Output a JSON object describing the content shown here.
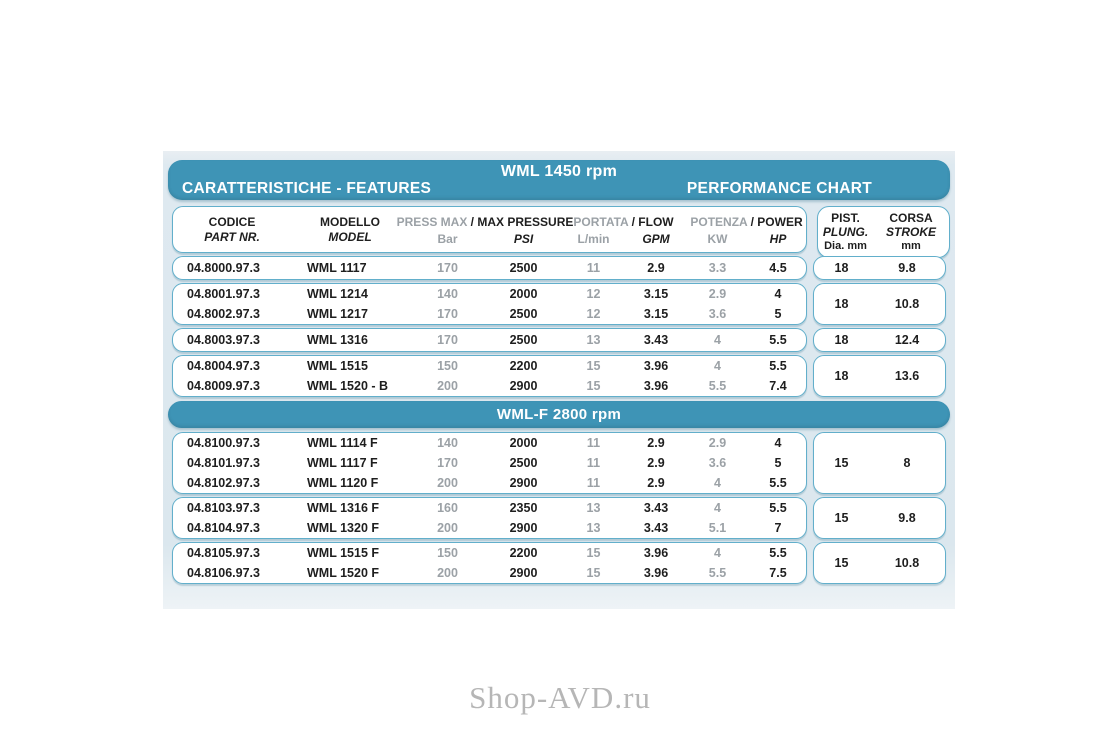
{
  "header": {
    "rpm_title": "WML 1450 rpm",
    "features_title": "CARATTERISTICHE - FEATURES",
    "performance_title": "PERFORMANCE CHART"
  },
  "columns": {
    "codice_l1": "CODICE",
    "codice_l2": "PART NR.",
    "modello_l1": "MODELLO",
    "modello_l2": "MODEL",
    "press_label_gray": "PRESS MAX",
    "press_label_black": "/ MAX PRESSURE",
    "unit_bar": "Bar",
    "unit_psi": "PSI",
    "flow_label_gray": "PORTATA",
    "flow_label_black": "/ FLOW",
    "unit_lmin": "L/min",
    "unit_gpm": "GPM",
    "power_label_gray": "POTENZA",
    "power_label_black": "/ POWER",
    "unit_kw": "KW",
    "unit_hp": "HP",
    "pist_l1": "PIST.",
    "pist_l2": "PLUNG.",
    "pist_l3": "Dia. mm",
    "corsa_l1": "CORSA",
    "corsa_l2": "STROKE",
    "corsa_l3": "mm"
  },
  "section2": {
    "title": "WML-F 2800 rpm"
  },
  "table_1450": {
    "groups": [
      {
        "plunger": "18",
        "stroke": "9.8",
        "rows": [
          [
            "04.8000.97.3",
            "WML 1117",
            "170",
            "2500",
            "11",
            "2.9",
            "3.3",
            "4.5"
          ]
        ]
      },
      {
        "plunger": "18",
        "stroke": "10.8",
        "rows": [
          [
            "04.8001.97.3",
            "WML 1214",
            "140",
            "2000",
            "12",
            "3.15",
            "2.9",
            "4"
          ],
          [
            "04.8002.97.3",
            "WML 1217",
            "170",
            "2500",
            "12",
            "3.15",
            "3.6",
            "5"
          ]
        ]
      },
      {
        "plunger": "18",
        "stroke": "12.4",
        "rows": [
          [
            "04.8003.97.3",
            "WML 1316",
            "170",
            "2500",
            "13",
            "3.43",
            "4",
            "5.5"
          ]
        ]
      },
      {
        "plunger": "18",
        "stroke": "13.6",
        "rows": [
          [
            "04.8004.97.3",
            "WML 1515",
            "150",
            "2200",
            "15",
            "3.96",
            "4",
            "5.5"
          ],
          [
            "04.8009.97.3",
            "WML 1520 - B",
            "200",
            "2900",
            "15",
            "3.96",
            "5.5",
            "7.4"
          ]
        ]
      }
    ]
  },
  "table_2800": {
    "groups": [
      {
        "plunger": "15",
        "stroke": "8",
        "rows": [
          [
            "04.8100.97.3",
            "WML 1114 F",
            "140",
            "2000",
            "11",
            "2.9",
            "2.9",
            "4"
          ],
          [
            "04.8101.97.3",
            "WML 1117 F",
            "170",
            "2500",
            "11",
            "2.9",
            "3.6",
            "5"
          ],
          [
            "04.8102.97.3",
            "WML 1120 F",
            "200",
            "2900",
            "11",
            "2.9",
            "4",
            "5.5"
          ]
        ]
      },
      {
        "plunger": "15",
        "stroke": "9.8",
        "rows": [
          [
            "04.8103.97.3",
            "WML 1316 F",
            "160",
            "2350",
            "13",
            "3.43",
            "4",
            "5.5"
          ],
          [
            "04.8104.97.3",
            "WML 1320 F",
            "200",
            "2900",
            "13",
            "3.43",
            "5.1",
            "7"
          ]
        ]
      },
      {
        "plunger": "15",
        "stroke": "10.8",
        "rows": [
          [
            "04.8105.97.3",
            "WML 1515 F",
            "150",
            "2200",
            "15",
            "3.96",
            "4",
            "5.5"
          ],
          [
            "04.8106.97.3",
            "WML 1520 F",
            "200",
            "2900",
            "15",
            "3.96",
            "5.5",
            "7.5"
          ]
        ]
      }
    ]
  },
  "watermark": "Shop-AVD.ru",
  "colors": {
    "accent_teal": "#3E94B6",
    "box_border": "#62AFCB",
    "photo_bg": "#DEE9F0",
    "muted_text": "#9BA1A6",
    "dark_text": "#1E1E1E",
    "watermark_gray": "#B6B6B6"
  }
}
